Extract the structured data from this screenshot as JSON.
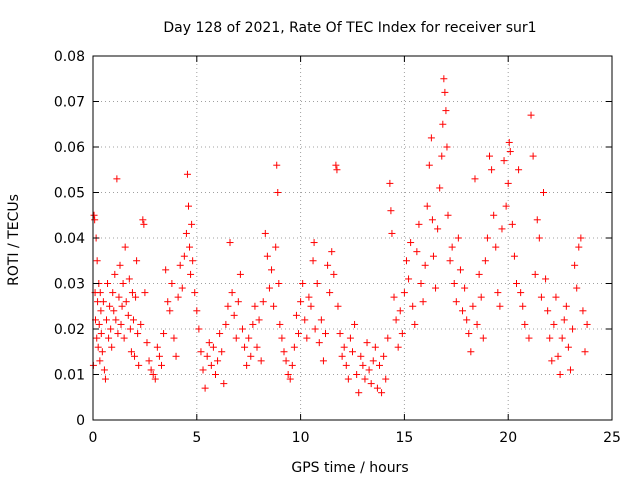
{
  "chart_data": {
    "type": "scatter",
    "title": "Day 128 of 2021, Rate Of TEC Index for receiver sur1",
    "xlabel": "GPS time / hours",
    "ylabel": "ROTI / TECUs",
    "xlim": [
      0,
      25
    ],
    "ylim": [
      0,
      0.08
    ],
    "x_ticks": [
      "0",
      "5",
      "10",
      "15",
      "20",
      "25"
    ],
    "y_ticks": [
      "0",
      "0.01",
      "0.02",
      "0.03",
      "0.04",
      "0.05",
      "0.06",
      "0.07",
      "0.08"
    ],
    "grid": true,
    "marker": "plus",
    "series": [
      {
        "color": "#ff0000",
        "points": [
          [
            0.02,
            0.012
          ],
          [
            0.05,
            0.045
          ],
          [
            0.08,
            0.044
          ],
          [
            0.1,
            0.028
          ],
          [
            0.12,
            0.022
          ],
          [
            0.15,
            0.04
          ],
          [
            0.18,
            0.018
          ],
          [
            0.2,
            0.035
          ],
          [
            0.22,
            0.026
          ],
          [
            0.25,
            0.016
          ],
          [
            0.28,
            0.03
          ],
          [
            0.3,
            0.021
          ],
          [
            0.33,
            0.013
          ],
          [
            0.35,
            0.028
          ],
          [
            0.38,
            0.024
          ],
          [
            0.4,
            0.019
          ],
          [
            0.45,
            0.015
          ],
          [
            0.5,
            0.026
          ],
          [
            0.55,
            0.011
          ],
          [
            0.6,
            0.009
          ],
          [
            0.65,
            0.022
          ],
          [
            0.7,
            0.03
          ],
          [
            0.75,
            0.018
          ],
          [
            0.8,
            0.025
          ],
          [
            0.85,
            0.02
          ],
          [
            0.9,
            0.016
          ],
          [
            0.95,
            0.028
          ],
          [
            1.0,
            0.024
          ],
          [
            1.05,
            0.032
          ],
          [
            1.1,
            0.022
          ],
          [
            1.15,
            0.053
          ],
          [
            1.2,
            0.019
          ],
          [
            1.25,
            0.027
          ],
          [
            1.3,
            0.034
          ],
          [
            1.35,
            0.021
          ],
          [
            1.4,
            0.025
          ],
          [
            1.45,
            0.03
          ],
          [
            1.5,
            0.018
          ],
          [
            1.55,
            0.038
          ],
          [
            1.6,
            0.026
          ],
          [
            1.7,
            0.023
          ],
          [
            1.75,
            0.031
          ],
          [
            1.8,
            0.02
          ],
          [
            1.85,
            0.015
          ],
          [
            1.9,
            0.028
          ],
          [
            1.95,
            0.022
          ],
          [
            2.0,
            0.014
          ],
          [
            2.05,
            0.027
          ],
          [
            2.1,
            0.035
          ],
          [
            2.15,
            0.019
          ],
          [
            2.2,
            0.012
          ],
          [
            2.3,
            0.021
          ],
          [
            2.4,
            0.044
          ],
          [
            2.45,
            0.043
          ],
          [
            2.5,
            0.028
          ],
          [
            2.6,
            0.017
          ],
          [
            2.7,
            0.013
          ],
          [
            2.8,
            0.011
          ],
          [
            2.9,
            0.01
          ],
          [
            3.0,
            0.009
          ],
          [
            3.1,
            0.016
          ],
          [
            3.2,
            0.014
          ],
          [
            3.3,
            0.012
          ],
          [
            3.4,
            0.019
          ],
          [
            3.5,
            0.033
          ],
          [
            3.6,
            0.026
          ],
          [
            3.7,
            0.024
          ],
          [
            3.8,
            0.03
          ],
          [
            3.9,
            0.018
          ],
          [
            4.0,
            0.014
          ],
          [
            4.1,
            0.027
          ],
          [
            4.2,
            0.034
          ],
          [
            4.3,
            0.029
          ],
          [
            4.4,
            0.036
          ],
          [
            4.5,
            0.041
          ],
          [
            4.55,
            0.054
          ],
          [
            4.6,
            0.047
          ],
          [
            4.65,
            0.038
          ],
          [
            4.7,
            0.032
          ],
          [
            4.75,
            0.043
          ],
          [
            4.8,
            0.035
          ],
          [
            4.9,
            0.028
          ],
          [
            5.0,
            0.024
          ],
          [
            5.1,
            0.02
          ],
          [
            5.2,
            0.015
          ],
          [
            5.3,
            0.011
          ],
          [
            5.4,
            0.007
          ],
          [
            5.5,
            0.014
          ],
          [
            5.6,
            0.017
          ],
          [
            5.7,
            0.012
          ],
          [
            5.8,
            0.016
          ],
          [
            5.9,
            0.01
          ],
          [
            6.0,
            0.013
          ],
          [
            6.1,
            0.019
          ],
          [
            6.2,
            0.015
          ],
          [
            6.3,
            0.008
          ],
          [
            6.4,
            0.021
          ],
          [
            6.5,
            0.025
          ],
          [
            6.6,
            0.039
          ],
          [
            6.7,
            0.028
          ],
          [
            6.8,
            0.023
          ],
          [
            6.9,
            0.018
          ],
          [
            7.0,
            0.026
          ],
          [
            7.1,
            0.032
          ],
          [
            7.2,
            0.02
          ],
          [
            7.3,
            0.016
          ],
          [
            7.4,
            0.012
          ],
          [
            7.5,
            0.018
          ],
          [
            7.6,
            0.014
          ],
          [
            7.7,
            0.021
          ],
          [
            7.8,
            0.025
          ],
          [
            7.9,
            0.016
          ],
          [
            8.0,
            0.022
          ],
          [
            8.1,
            0.013
          ],
          [
            8.2,
            0.026
          ],
          [
            8.3,
            0.041
          ],
          [
            8.4,
            0.036
          ],
          [
            8.5,
            0.029
          ],
          [
            8.6,
            0.033
          ],
          [
            8.7,
            0.025
          ],
          [
            8.8,
            0.038
          ],
          [
            8.85,
            0.056
          ],
          [
            8.9,
            0.05
          ],
          [
            8.95,
            0.03
          ],
          [
            9.0,
            0.021
          ],
          [
            9.1,
            0.018
          ],
          [
            9.2,
            0.015
          ],
          [
            9.3,
            0.013
          ],
          [
            9.4,
            0.01
          ],
          [
            9.5,
            0.009
          ],
          [
            9.6,
            0.012
          ],
          [
            9.7,
            0.016
          ],
          [
            9.8,
            0.023
          ],
          [
            9.9,
            0.019
          ],
          [
            10.0,
            0.026
          ],
          [
            10.1,
            0.03
          ],
          [
            10.2,
            0.022
          ],
          [
            10.3,
            0.018
          ],
          [
            10.4,
            0.027
          ],
          [
            10.5,
            0.025
          ],
          [
            10.6,
            0.035
          ],
          [
            10.65,
            0.039
          ],
          [
            10.7,
            0.02
          ],
          [
            10.8,
            0.03
          ],
          [
            10.9,
            0.017
          ],
          [
            11.0,
            0.022
          ],
          [
            11.1,
            0.013
          ],
          [
            11.2,
            0.019
          ],
          [
            11.3,
            0.034
          ],
          [
            11.4,
            0.028
          ],
          [
            11.5,
            0.037
          ],
          [
            11.6,
            0.032
          ],
          [
            11.7,
            0.056
          ],
          [
            11.75,
            0.055
          ],
          [
            11.8,
            0.025
          ],
          [
            11.9,
            0.019
          ],
          [
            12.0,
            0.014
          ],
          [
            12.1,
            0.016
          ],
          [
            12.2,
            0.012
          ],
          [
            12.3,
            0.009
          ],
          [
            12.4,
            0.018
          ],
          [
            12.5,
            0.015
          ],
          [
            12.6,
            0.021
          ],
          [
            12.7,
            0.01
          ],
          [
            12.8,
            0.006
          ],
          [
            12.9,
            0.014
          ],
          [
            13.0,
            0.012
          ],
          [
            13.1,
            0.009
          ],
          [
            13.2,
            0.017
          ],
          [
            13.3,
            0.011
          ],
          [
            13.4,
            0.008
          ],
          [
            13.5,
            0.013
          ],
          [
            13.6,
            0.016
          ],
          [
            13.7,
            0.007
          ],
          [
            13.8,
            0.012
          ],
          [
            13.9,
            0.006
          ],
          [
            14.0,
            0.014
          ],
          [
            14.1,
            0.009
          ],
          [
            14.2,
            0.018
          ],
          [
            14.3,
            0.052
          ],
          [
            14.35,
            0.046
          ],
          [
            14.4,
            0.041
          ],
          [
            14.5,
            0.027
          ],
          [
            14.6,
            0.022
          ],
          [
            14.7,
            0.016
          ],
          [
            14.8,
            0.024
          ],
          [
            14.9,
            0.019
          ],
          [
            15.0,
            0.028
          ],
          [
            15.1,
            0.035
          ],
          [
            15.2,
            0.031
          ],
          [
            15.3,
            0.039
          ],
          [
            15.4,
            0.025
          ],
          [
            15.5,
            0.021
          ],
          [
            15.6,
            0.037
          ],
          [
            15.7,
            0.043
          ],
          [
            15.8,
            0.03
          ],
          [
            15.9,
            0.026
          ],
          [
            16.0,
            0.034
          ],
          [
            16.1,
            0.047
          ],
          [
            16.2,
            0.056
          ],
          [
            16.3,
            0.062
          ],
          [
            16.35,
            0.044
          ],
          [
            16.4,
            0.036
          ],
          [
            16.5,
            0.029
          ],
          [
            16.6,
            0.042
          ],
          [
            16.7,
            0.051
          ],
          [
            16.8,
            0.058
          ],
          [
            16.85,
            0.065
          ],
          [
            16.9,
            0.075
          ],
          [
            16.95,
            0.072
          ],
          [
            17.0,
            0.068
          ],
          [
            17.05,
            0.06
          ],
          [
            17.1,
            0.045
          ],
          [
            17.2,
            0.035
          ],
          [
            17.3,
            0.038
          ],
          [
            17.4,
            0.03
          ],
          [
            17.5,
            0.026
          ],
          [
            17.6,
            0.04
          ],
          [
            17.7,
            0.033
          ],
          [
            17.8,
            0.024
          ],
          [
            17.9,
            0.029
          ],
          [
            18.0,
            0.022
          ],
          [
            18.1,
            0.019
          ],
          [
            18.2,
            0.015
          ],
          [
            18.3,
            0.025
          ],
          [
            18.4,
            0.053
          ],
          [
            18.5,
            0.021
          ],
          [
            18.6,
            0.032
          ],
          [
            18.7,
            0.027
          ],
          [
            18.8,
            0.018
          ],
          [
            18.9,
            0.035
          ],
          [
            19.0,
            0.04
          ],
          [
            19.1,
            0.058
          ],
          [
            19.2,
            0.055
          ],
          [
            19.3,
            0.045
          ],
          [
            19.4,
            0.038
          ],
          [
            19.5,
            0.028
          ],
          [
            19.6,
            0.025
          ],
          [
            19.7,
            0.042
          ],
          [
            19.8,
            0.057
          ],
          [
            19.9,
            0.047
          ],
          [
            20.0,
            0.052
          ],
          [
            20.05,
            0.061
          ],
          [
            20.1,
            0.059
          ],
          [
            20.2,
            0.043
          ],
          [
            20.3,
            0.036
          ],
          [
            20.4,
            0.03
          ],
          [
            20.5,
            0.055
          ],
          [
            20.6,
            0.028
          ],
          [
            20.7,
            0.025
          ],
          [
            20.8,
            0.021
          ],
          [
            21.0,
            0.018
          ],
          [
            21.1,
            0.067
          ],
          [
            21.2,
            0.058
          ],
          [
            21.3,
            0.032
          ],
          [
            21.4,
            0.044
          ],
          [
            21.5,
            0.04
          ],
          [
            21.6,
            0.027
          ],
          [
            21.7,
            0.05
          ],
          [
            21.8,
            0.031
          ],
          [
            21.9,
            0.024
          ],
          [
            22.0,
            0.018
          ],
          [
            22.1,
            0.013
          ],
          [
            22.2,
            0.021
          ],
          [
            22.3,
            0.027
          ],
          [
            22.4,
            0.014
          ],
          [
            22.5,
            0.01
          ],
          [
            22.6,
            0.018
          ],
          [
            22.7,
            0.022
          ],
          [
            22.8,
            0.025
          ],
          [
            22.9,
            0.016
          ],
          [
            23.0,
            0.011
          ],
          [
            23.1,
            0.02
          ],
          [
            23.2,
            0.034
          ],
          [
            23.3,
            0.029
          ],
          [
            23.4,
            0.038
          ],
          [
            23.5,
            0.04
          ],
          [
            23.6,
            0.024
          ],
          [
            23.7,
            0.015
          ],
          [
            23.8,
            0.021
          ]
        ]
      }
    ]
  }
}
